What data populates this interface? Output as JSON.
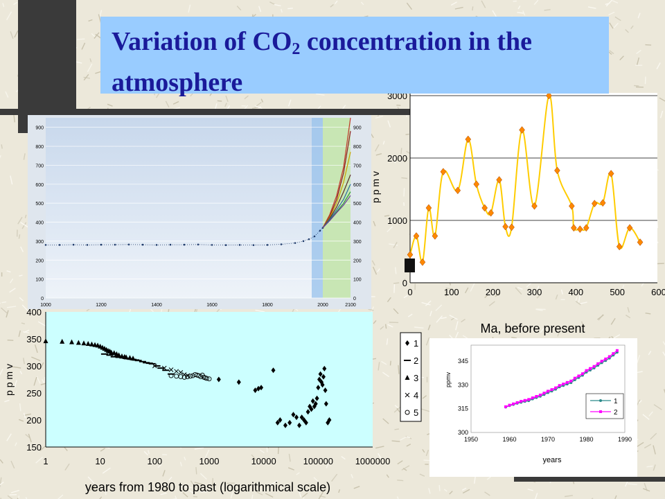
{
  "title": {
    "main": "Variation of CO",
    "sub": "2",
    "rest": " concentration in the atmosphere"
  },
  "chart_data": [
    {
      "type": "line",
      "x": [
        1000,
        1050,
        1100,
        1150,
        1200,
        1250,
        1300,
        1350,
        1400,
        1450,
        1500,
        1550,
        1600,
        1650,
        1700,
        1750,
        1800,
        1850,
        1900,
        1930,
        1950,
        1970,
        1990,
        2000
      ],
      "series": [
        {
          "values": [
            280,
            280,
            281,
            280,
            281,
            281,
            282,
            281,
            280,
            281,
            281,
            282,
            280,
            279,
            280,
            279,
            280,
            283,
            290,
            300,
            310,
            325,
            355,
            370
          ]
        }
      ],
      "scenarios": {
        "x": [
          2000,
          2025,
          2050,
          2075,
          2100
        ],
        "series": [
          [
            370,
            440,
            540,
            690,
            960
          ],
          [
            370,
            430,
            520,
            660,
            880
          ],
          [
            370,
            425,
            500,
            610,
            770
          ],
          [
            370,
            420,
            480,
            560,
            650
          ],
          [
            370,
            415,
            465,
            520,
            600
          ],
          [
            370,
            410,
            455,
            500,
            560
          ],
          [
            370,
            408,
            450,
            490,
            540
          ]
        ]
      },
      "xticks": [
        1000,
        1200,
        1400,
        1600,
        1800,
        2000,
        2100
      ],
      "yticks": [
        0,
        100,
        200,
        300,
        400,
        500,
        600,
        700,
        800,
        900
      ],
      "xlim": [
        1000,
        2100
      ],
      "ylim": [
        0,
        950
      ]
    },
    {
      "type": "line",
      "x": [
        0,
        15,
        30,
        45,
        60,
        80,
        115,
        140,
        160,
        180,
        195,
        215,
        230,
        245,
        270,
        300,
        335,
        355,
        390,
        395,
        410,
        425,
        445,
        465,
        485,
        505,
        530,
        555
      ],
      "values": [
        450,
        750,
        330,
        1200,
        750,
        1780,
        1480,
        2300,
        1580,
        1200,
        1120,
        1650,
        900,
        890,
        2450,
        1230,
        3000,
        1800,
        1230,
        880,
        860,
        880,
        1270,
        1280,
        1750,
        580,
        880,
        650
      ],
      "ylabel": "p p m v",
      "xlabel": "Ma, before present",
      "xticks": [
        0,
        100,
        200,
        300,
        400,
        500,
        600
      ],
      "yticks": [
        0,
        1000,
        2000,
        3000
      ],
      "xlim": [
        0,
        600
      ],
      "ylim": [
        0,
        3000
      ]
    },
    {
      "type": "scatter",
      "ylabel": "p p m v",
      "xlabel": "years from 1980 to past (logarithmical scale)",
      "xticks": [
        "1",
        "10",
        "100",
        "1000",
        "10000",
        "100000",
        "1000000"
      ],
      "yticks": [
        150,
        200,
        250,
        300,
        350,
        400
      ],
      "xlim": [
        1,
        1000000
      ],
      "ylim": [
        150,
        400
      ],
      "legend": [
        "1",
        "2",
        "3",
        "4",
        "5"
      ],
      "series": [
        {
          "name": "1",
          "x": [
            1500,
            3500,
            7000,
            8000,
            9000,
            15000,
            18000,
            20000,
            25000,
            30000,
            35000,
            40000,
            45000,
            50000,
            55000,
            60000,
            65000,
            70000,
            75000,
            80000,
            85000,
            90000,
            95000,
            100000,
            105000,
            110000,
            115000,
            120000,
            125000,
            130000,
            135000,
            140000,
            150000,
            160000
          ],
          "y": [
            275,
            270,
            255,
            258,
            260,
            292,
            195,
            200,
            190,
            195,
            210,
            205,
            190,
            205,
            200,
            195,
            215,
            225,
            220,
            235,
            225,
            230,
            240,
            260,
            275,
            285,
            270,
            265,
            280,
            295,
            255,
            230,
            195,
            200
          ]
        },
        {
          "name": "2",
          "x": [
            12,
            15,
            18,
            22,
            26,
            30,
            35,
            40,
            45,
            50,
            60,
            70,
            80,
            90,
            110,
            130,
            160,
            200
          ],
          "y": [
            322,
            320,
            317,
            316,
            315,
            314,
            313,
            312,
            311,
            310,
            308,
            306,
            305,
            304,
            300,
            296,
            292,
            285
          ]
        },
        {
          "name": "3",
          "x": [
            1,
            2,
            3,
            4,
            5,
            6,
            7,
            8,
            9,
            10,
            11,
            12,
            13,
            14,
            15,
            16,
            18,
            20,
            22,
            25,
            28,
            30,
            35,
            40
          ],
          "y": [
            346,
            345,
            344,
            343,
            342,
            341,
            340,
            339,
            338,
            336,
            334,
            332,
            330,
            328,
            327,
            325,
            324,
            322,
            320,
            318,
            317,
            316,
            315,
            314
          ]
        },
        {
          "name": "4",
          "x": [
            100,
            150,
            200,
            250,
            300,
            350,
            400
          ],
          "y": [
            300,
            296,
            293,
            290,
            288,
            284,
            282
          ]
        },
        {
          "name": "5",
          "x": [
            200,
            250,
            300,
            350,
            400,
            450,
            500,
            550,
            600,
            650,
            700,
            750,
            800,
            850,
            900,
            1000
          ],
          "y": [
            282,
            281,
            280,
            279,
            280,
            281,
            282,
            284,
            283,
            282,
            280,
            283,
            279,
            278,
            277,
            276
          ]
        }
      ]
    },
    {
      "type": "line",
      "ylabel": "ppmv",
      "xlabel": "years",
      "xticks": [
        1950,
        1960,
        1970,
        1980,
        1990
      ],
      "yticks": [
        300,
        315,
        330,
        345
      ],
      "xlim": [
        1950,
        1990
      ],
      "ylim": [
        300,
        355
      ],
      "legend": [
        "1",
        "2"
      ],
      "series": [
        {
          "name": "1",
          "x": [
            1959,
            1960,
            1961,
            1962,
            1963,
            1964,
            1965,
            1966,
            1967,
            1968,
            1969,
            1970,
            1971,
            1972,
            1973,
            1974,
            1975,
            1976,
            1977,
            1978,
            1979,
            1980,
            1981,
            1982,
            1983,
            1984,
            1985,
            1986,
            1987,
            1988
          ],
          "values": [
            316,
            316.9,
            317.6,
            318.4,
            319,
            319.6,
            320,
            321.1,
            322,
            322.8,
            323.9,
            325.1,
            326.1,
            327.2,
            328.7,
            329.6,
            330.5,
            331.4,
            333.2,
            334.6,
            336,
            338,
            339.3,
            340.6,
            342.3,
            343.9,
            345.3,
            346.8,
            348.7,
            350.5
          ]
        },
        {
          "name": "2",
          "x": [
            1959,
            1960,
            1961,
            1962,
            1963,
            1964,
            1965,
            1966,
            1967,
            1968,
            1969,
            1970,
            1971,
            1972,
            1973,
            1974,
            1975,
            1976,
            1977,
            1978,
            1979,
            1980,
            1981,
            1982,
            1983,
            1984,
            1985,
            1986,
            1987,
            1988
          ],
          "values": [
            316.2,
            317.2,
            318,
            318.8,
            319.6,
            320.2,
            320.8,
            321.8,
            322.7,
            323.6,
            324.8,
            326,
            327,
            328.1,
            329.6,
            330.5,
            331.5,
            332.4,
            334.2,
            335.6,
            337,
            339,
            340.3,
            341.6,
            343.3,
            344.9,
            346.3,
            347.8,
            349.7,
            351.6
          ]
        }
      ]
    }
  ],
  "colors": {
    "title_bg": "#99ccff",
    "title_text": "#1a1a9a",
    "chart4_s1": "#2a8a8a",
    "chart4_s2": "#ff00ff",
    "chart2_line": "#ffcc00",
    "chart2_marker": "#ff8800"
  }
}
